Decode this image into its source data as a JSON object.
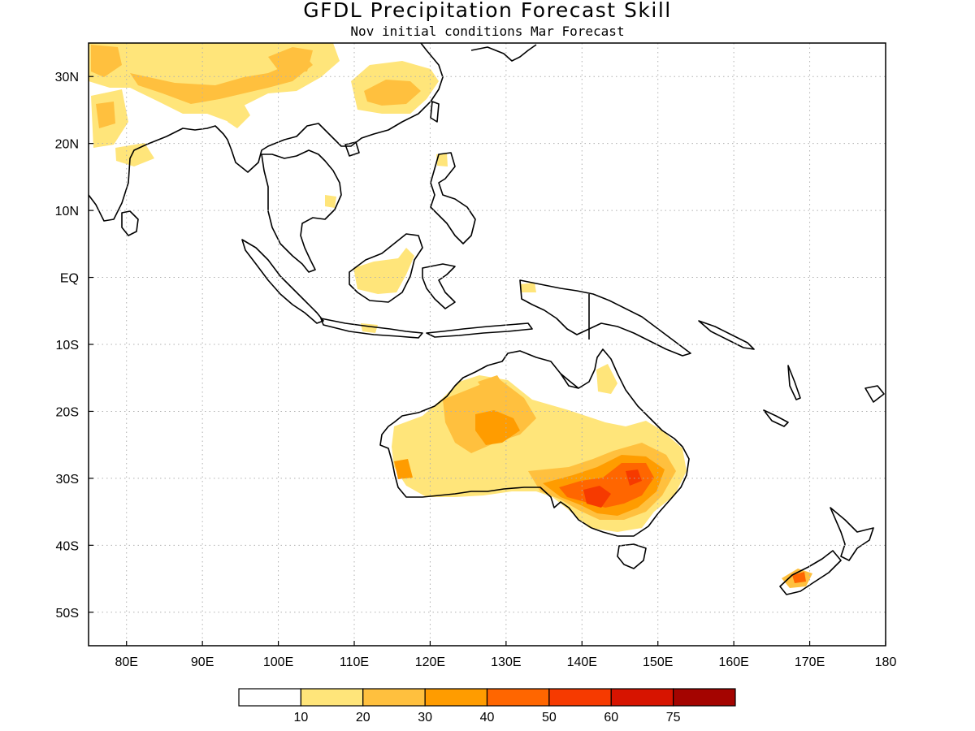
{
  "title": "GFDL Precipitation Forecast Skill",
  "subtitle": "Nov initial conditions  Mar Forecast",
  "map": {
    "lon_range": [
      75,
      180
    ],
    "lat_range": [
      -55,
      35
    ],
    "lon_ticks": [
      {
        "value": 80,
        "label": "80E"
      },
      {
        "value": 90,
        "label": "90E"
      },
      {
        "value": 100,
        "label": "100E"
      },
      {
        "value": 110,
        "label": "110E"
      },
      {
        "value": 120,
        "label": "120E"
      },
      {
        "value": 130,
        "label": "130E"
      },
      {
        "value": 140,
        "label": "140E"
      },
      {
        "value": 150,
        "label": "150E"
      },
      {
        "value": 160,
        "label": "160E"
      },
      {
        "value": 170,
        "label": "170E"
      },
      {
        "value": 180,
        "label": "180"
      }
    ],
    "lat_ticks": [
      {
        "value": 30,
        "label": "30N"
      },
      {
        "value": 20,
        "label": "20N"
      },
      {
        "value": 10,
        "label": "10N"
      },
      {
        "value": 0,
        "label": "EQ"
      },
      {
        "value": -10,
        "label": "10S"
      },
      {
        "value": -20,
        "label": "20S"
      },
      {
        "value": -30,
        "label": "30S"
      },
      {
        "value": -40,
        "label": "40S"
      },
      {
        "value": -50,
        "label": "50S"
      }
    ],
    "grid": "dotted"
  },
  "colorbar": {
    "bins": [
      {
        "color": "#ffffff"
      },
      {
        "color": "#ffe57a"
      },
      {
        "color": "#ffc03e"
      },
      {
        "color": "#ff9c00"
      },
      {
        "color": "#ff6600"
      },
      {
        "color": "#f63a00"
      },
      {
        "color": "#d71400"
      },
      {
        "color": "#a40400"
      }
    ],
    "labels": [
      "10",
      "20",
      "30",
      "40",
      "50",
      "60",
      "75"
    ]
  }
}
